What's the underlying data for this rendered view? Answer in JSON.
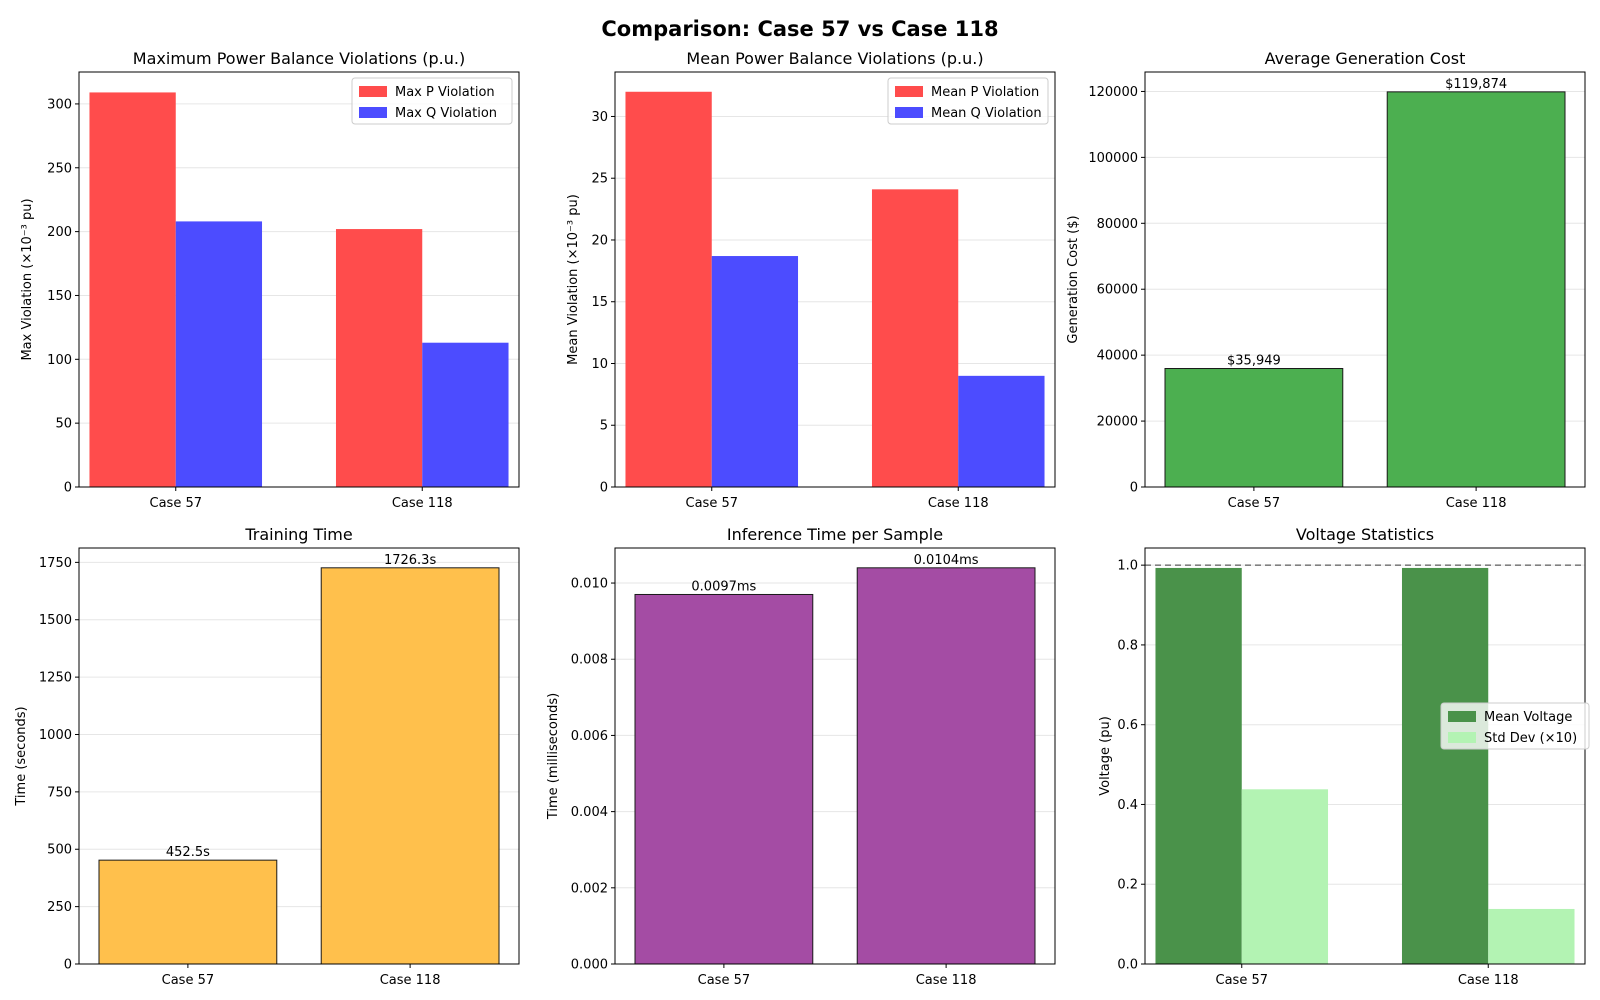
{
  "figure": {
    "suptitle": "Comparison: Case 57 vs Case 118"
  },
  "chart_data": [
    {
      "type": "bar",
      "title": "Maximum Power Balance Violations (p.u.)",
      "ylabel": "Max Violation (×10⁻³ pu)",
      "xlabel": "",
      "categories": [
        "Case 57",
        "Case 118"
      ],
      "series": [
        {
          "name": "Max P Violation",
          "values": [
            309,
            202
          ],
          "color": "#ff4c4c"
        },
        {
          "name": "Max Q Violation",
          "values": [
            208,
            113
          ],
          "color": "#4c4cff"
        }
      ],
      "ylim": [
        0,
        325
      ],
      "yticks": [
        0,
        50,
        100,
        150,
        200,
        250,
        300
      ],
      "legend": "upper-right",
      "grid": true
    },
    {
      "type": "bar",
      "title": "Mean Power Balance Violations (p.u.)",
      "ylabel": "Mean Violation (×10⁻³ pu)",
      "xlabel": "",
      "categories": [
        "Case 57",
        "Case 118"
      ],
      "series": [
        {
          "name": "Mean P Violation",
          "values": [
            32.0,
            24.1
          ],
          "color": "#ff4c4c"
        },
        {
          "name": "Mean Q Violation",
          "values": [
            18.7,
            9.0
          ],
          "color": "#4c4cff"
        }
      ],
      "ylim": [
        0,
        33.6
      ],
      "yticks": [
        0,
        5,
        10,
        15,
        20,
        25,
        30
      ],
      "legend": "upper-right",
      "grid": true
    },
    {
      "type": "bar",
      "title": "Average Generation Cost",
      "ylabel": "Generation Cost ($)",
      "xlabel": "",
      "categories": [
        "Case 57",
        "Case 118"
      ],
      "values": [
        35949,
        119874
      ],
      "data_labels": [
        "$35,949",
        "$119,874"
      ],
      "color": "#4caf50",
      "ylim": [
        0,
        125900
      ],
      "yticks": [
        0,
        20000,
        40000,
        60000,
        80000,
        100000,
        120000
      ],
      "grid": true
    },
    {
      "type": "bar",
      "title": "Training Time",
      "ylabel": "Time (seconds)",
      "xlabel": "",
      "categories": [
        "Case 57",
        "Case 118"
      ],
      "values": [
        452.5,
        1726.3
      ],
      "data_labels": [
        "452.5s",
        "1726.3s"
      ],
      "color": "#ffc04c",
      "ylim": [
        0,
        1812.6
      ],
      "yticks": [
        0,
        250,
        500,
        750,
        1000,
        1250,
        1500,
        1750
      ],
      "grid": true
    },
    {
      "type": "bar",
      "title": "Inference Time per Sample",
      "ylabel": "Time (milliseconds)",
      "xlabel": "",
      "categories": [
        "Case 57",
        "Case 118"
      ],
      "values": [
        0.0097,
        0.0104
      ],
      "data_labels": [
        "0.0097ms",
        "0.0104ms"
      ],
      "color": "#a44ca4",
      "ylim": [
        0,
        0.01092
      ],
      "yticks": [
        0,
        0.002,
        0.004,
        0.006,
        0.008,
        0.01
      ],
      "ytick_labels": [
        "0.000",
        "0.002",
        "0.004",
        "0.006",
        "0.008",
        "0.010"
      ],
      "grid": true
    },
    {
      "type": "bar",
      "title": "Voltage Statistics",
      "ylabel": "Voltage (pu)",
      "xlabel": "",
      "categories": [
        "Case 57",
        "Case 118"
      ],
      "series": [
        {
          "name": "Mean Voltage",
          "values": [
            0.993,
            0.993
          ],
          "color": "#4a924a"
        },
        {
          "name": "Std Dev (×10)",
          "values": [
            0.438,
            0.138
          ],
          "color": "#b3f3b3"
        }
      ],
      "reference_line": {
        "y": 1.0,
        "style": "dashed",
        "color": "#808080"
      },
      "ylim": [
        0,
        1.043
      ],
      "yticks": [
        0,
        0.2,
        0.4,
        0.6,
        0.8,
        1.0
      ],
      "ytick_labels": [
        "0.0",
        "0.2",
        "0.4",
        "0.6",
        "0.8",
        "1.0"
      ],
      "legend": "center-right",
      "grid": true
    }
  ]
}
